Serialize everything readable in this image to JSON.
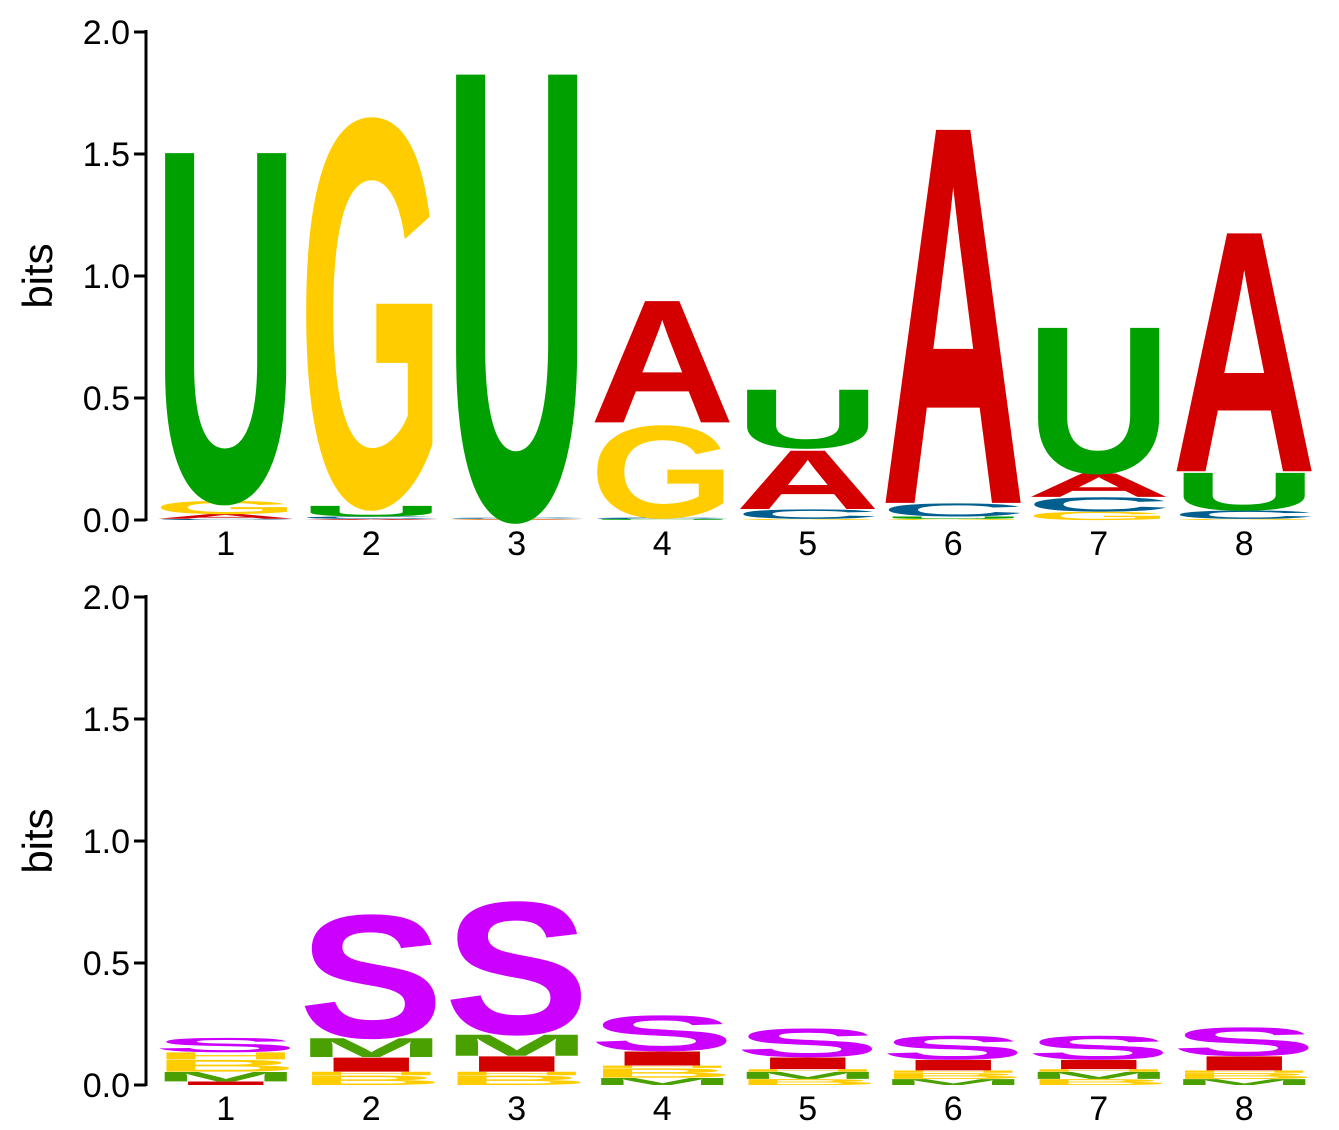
{
  "chart_data": [
    {
      "type": "sequence-logo",
      "alphabet": "RNA",
      "ylabel": "bits",
      "ylim": [
        0,
        2.0
      ],
      "yticks": [
        "0.0",
        "0.5",
        "1.0",
        "1.5",
        "2.0"
      ],
      "positions": [
        "1",
        "2",
        "3",
        "4",
        "5",
        "6",
        "7",
        "8"
      ],
      "colors": {
        "A": "#d40000",
        "C": "#005f8f",
        "G": "#ffcc00",
        "U": "#00a000"
      },
      "columns": [
        [
          {
            "letter": "C",
            "bits": 0.005
          },
          {
            "letter": "A",
            "bits": 0.02
          },
          {
            "letter": "G",
            "bits": 0.055
          },
          {
            "letter": "U",
            "bits": 1.49
          }
        ],
        [
          {
            "letter": "A",
            "bits": 0.005
          },
          {
            "letter": "C",
            "bits": 0.01
          },
          {
            "letter": "U",
            "bits": 0.045
          },
          {
            "letter": "G",
            "bits": 1.64
          }
        ],
        [
          {
            "letter": "G",
            "bits": 0.002
          },
          {
            "letter": "A",
            "bits": 0.003
          },
          {
            "letter": "C",
            "bits": 0.005
          },
          {
            "letter": "U",
            "bits": 1.9
          }
        ],
        [
          {
            "letter": "U",
            "bits": 0.004
          },
          {
            "letter": "C",
            "bits": 0.006
          },
          {
            "letter": "G",
            "bits": 0.39
          },
          {
            "letter": "A",
            "bits": 0.52
          }
        ],
        [
          {
            "letter": "G",
            "bits": 0.005
          },
          {
            "letter": "C",
            "bits": 0.04
          },
          {
            "letter": "A",
            "bits": 0.25
          },
          {
            "letter": "U",
            "bits": 0.25
          }
        ],
        [
          {
            "letter": "G",
            "bits": 0.005
          },
          {
            "letter": "U",
            "bits": 0.01
          },
          {
            "letter": "C",
            "bits": 0.055
          },
          {
            "letter": "A",
            "bits": 1.6
          }
        ],
        [
          {
            "letter": "G",
            "bits": 0.035
          },
          {
            "letter": "C",
            "bits": 0.06
          },
          {
            "letter": "A",
            "bits": 0.1
          },
          {
            "letter": "U",
            "bits": 0.62
          }
        ],
        [
          {
            "letter": "G",
            "bits": 0.005
          },
          {
            "letter": "C",
            "bits": 0.035
          },
          {
            "letter": "U",
            "bits": 0.16
          },
          {
            "letter": "A",
            "bits": 1.02
          }
        ]
      ]
    },
    {
      "type": "sequence-logo",
      "alphabet": "structure",
      "ylabel": "bits",
      "ylim": [
        0,
        2.0
      ],
      "yticks": [
        "0.0",
        "0.5",
        "1.0",
        "1.5",
        "2.0"
      ],
      "positions": [
        "1",
        "2",
        "3",
        "4",
        "5",
        "6",
        "7",
        "8"
      ],
      "colors": {
        "S": "#cc00ff",
        "M": "#4aa000",
        "H": "#ffcc00",
        "I": "#d40000",
        "B": "#ffcc00"
      },
      "columns": [
        [
          {
            "letter": "I",
            "bits": 0.015
          },
          {
            "letter": "M",
            "bits": 0.04
          },
          {
            "letter": "B",
            "bits": 0.05
          },
          {
            "letter": "H",
            "bits": 0.03
          },
          {
            "letter": "S",
            "bits": 0.06
          }
        ],
        [
          {
            "letter": "B",
            "bits": 0.04
          },
          {
            "letter": "H",
            "bits": 0.015
          },
          {
            "letter": "I",
            "bits": 0.06
          },
          {
            "letter": "M",
            "bits": 0.08
          },
          {
            "letter": "S",
            "bits": 0.52
          }
        ],
        [
          {
            "letter": "B",
            "bits": 0.04
          },
          {
            "letter": "H",
            "bits": 0.015
          },
          {
            "letter": "I",
            "bits": 0.065
          },
          {
            "letter": "M",
            "bits": 0.09
          },
          {
            "letter": "S",
            "bits": 0.56
          }
        ],
        [
          {
            "letter": "M",
            "bits": 0.03
          },
          {
            "letter": "B",
            "bits": 0.04
          },
          {
            "letter": "H",
            "bits": 0.01
          },
          {
            "letter": "I",
            "bits": 0.06
          },
          {
            "letter": "S",
            "bits": 0.15
          }
        ],
        [
          {
            "letter": "B",
            "bits": 0.025
          },
          {
            "letter": "M",
            "bits": 0.03
          },
          {
            "letter": "H",
            "bits": 0.01
          },
          {
            "letter": "I",
            "bits": 0.05
          },
          {
            "letter": "S",
            "bits": 0.12
          }
        ],
        [
          {
            "letter": "M",
            "bits": 0.025
          },
          {
            "letter": "B",
            "bits": 0.025
          },
          {
            "letter": "H",
            "bits": 0.01
          },
          {
            "letter": "I",
            "bits": 0.045
          },
          {
            "letter": "S",
            "bits": 0.1
          }
        ],
        [
          {
            "letter": "B",
            "bits": 0.025
          },
          {
            "letter": "M",
            "bits": 0.03
          },
          {
            "letter": "H",
            "bits": 0.01
          },
          {
            "letter": "I",
            "bits": 0.04
          },
          {
            "letter": "S",
            "bits": 0.1
          }
        ],
        [
          {
            "letter": "M",
            "bits": 0.025
          },
          {
            "letter": "B",
            "bits": 0.025
          },
          {
            "letter": "H",
            "bits": 0.01
          },
          {
            "letter": "I",
            "bits": 0.06
          },
          {
            "letter": "S",
            "bits": 0.12
          }
        ]
      ]
    }
  ]
}
